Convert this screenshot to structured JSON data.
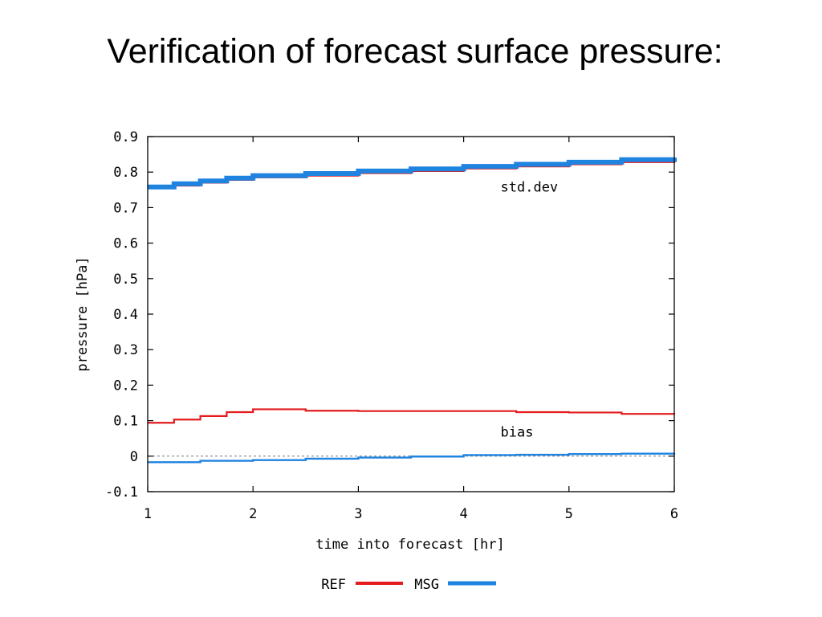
{
  "slide": {
    "title": "Verification of forecast surface pressure:"
  },
  "chart_data": {
    "type": "line",
    "title": "",
    "xlabel": "time into forecast [hr]",
    "ylabel": "pressure [hPa]",
    "xlim": [
      1,
      6
    ],
    "ylim": [
      -0.1,
      0.9
    ],
    "x_ticks": [
      1,
      2,
      3,
      4,
      5,
      6
    ],
    "x_tick_labels": [
      "1",
      "2",
      "3",
      "4",
      "5",
      "6"
    ],
    "y_ticks": [
      -0.1,
      0,
      0.1,
      0.2,
      0.3,
      0.4,
      0.5,
      0.6,
      0.7,
      0.8,
      0.9
    ],
    "y_tick_labels": [
      "-0.1",
      "0",
      "0.1",
      "0.2",
      "0.3",
      "0.4",
      "0.5",
      "0.6",
      "0.7",
      "0.8",
      "0.9"
    ],
    "grid": false,
    "zero_line": true,
    "legend_position": "bottom",
    "annotations": [
      {
        "text": "std.dev",
        "x": 4.35,
        "y": 0.745
      },
      {
        "text": "bias",
        "x": 4.35,
        "y": 0.055
      }
    ],
    "series": [
      {
        "name": "REF",
        "group": "std.dev",
        "color": "#e41a1c",
        "x": [
          1.0,
          1.25,
          1.5,
          1.75,
          2.0,
          2.5,
          3.0,
          3.5,
          4.0,
          4.5,
          5.0,
          5.5,
          6.0
        ],
        "values": [
          0.755,
          0.762,
          0.77,
          0.778,
          0.785,
          0.79,
          0.797,
          0.803,
          0.81,
          0.816,
          0.822,
          0.828,
          0.834
        ]
      },
      {
        "name": "MSG",
        "group": "std.dev",
        "color": "#1f83e0",
        "x": [
          1.0,
          1.25,
          1.5,
          1.75,
          2.0,
          2.5,
          3.0,
          3.5,
          4.0,
          4.5,
          5.0,
          5.5,
          6.0
        ],
        "values": [
          0.758,
          0.767,
          0.775,
          0.783,
          0.79,
          0.796,
          0.803,
          0.809,
          0.816,
          0.822,
          0.828,
          0.835,
          0.841
        ]
      },
      {
        "name": "REF",
        "group": "bias",
        "color": "#e41a1c",
        "x": [
          1.0,
          1.25,
          1.5,
          1.75,
          2.0,
          2.5,
          3.0,
          3.5,
          4.0,
          4.5,
          5.0,
          5.5,
          6.0
        ],
        "values": [
          0.094,
          0.103,
          0.113,
          0.124,
          0.132,
          0.128,
          0.127,
          0.127,
          0.127,
          0.124,
          0.123,
          0.119,
          0.118
        ]
      },
      {
        "name": "MSG",
        "group": "bias",
        "color": "#1f83e0",
        "x": [
          1.0,
          1.5,
          2.0,
          2.5,
          3.0,
          3.5,
          4.0,
          4.5,
          5.0,
          5.5,
          6.0
        ],
        "values": [
          -0.017,
          -0.013,
          -0.011,
          -0.007,
          -0.004,
          -0.001,
          0.003,
          0.004,
          0.006,
          0.007,
          0.008
        ]
      }
    ],
    "legend": [
      {
        "label": "REF",
        "color": "#e41a1c"
      },
      {
        "label": "MSG",
        "color": "#1f83e0"
      }
    ]
  }
}
